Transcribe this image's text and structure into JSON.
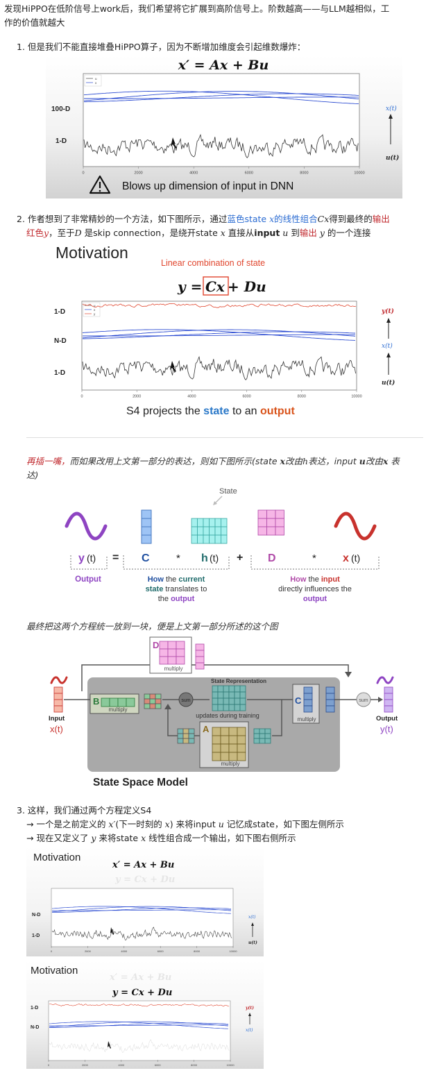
{
  "intro": {
    "line1": "发现HiPPO在低阶信号上work后，我们希望将它扩展到高阶信号上。阶数越高——与LLM越相似，工",
    "line2": "作的价值就越大"
  },
  "item1": {
    "num": "1.",
    "text": "但是我们不能直接堆叠HiPPO算子，因为不断增加维度会引起维数爆炸："
  },
  "fig1": {
    "equation": "x′ = Ax + Bu",
    "legend": [
      "u",
      "x"
    ],
    "left_labels": [
      "100-D",
      "1-D"
    ],
    "right_labels": [
      "x(t)",
      "u(t)"
    ],
    "x_ticks": [
      "0",
      "2000",
      "4000",
      "6000",
      "8000",
      "10000"
    ],
    "warning": "Blows up dimension of input in DNN"
  },
  "item2": {
    "num": "2.",
    "t1": "作者想到了非常精妙的一个方法，如下图所示，通过",
    "t2": "蓝色state ",
    "t3": "x",
    "t4": "的线性组合",
    "t5": "Cx",
    "t6": "得到最终的",
    "t7": "输出",
    "t8": "红色",
    "t9": "y",
    "t10": "，至于",
    "t11": "D",
    "t12": " 是skip connection，是绕开state ",
    "t13": "x",
    "t14": " 直接从",
    "t15": "input",
    "t16": " u",
    "t17": " 到",
    "t18": "输出",
    "t19": " y",
    "t20": " 的一个连接"
  },
  "fig2": {
    "title": "Motivation",
    "subtitle": "Linear combination of state",
    "equation_left": "y = ",
    "equation_box": "Cx",
    "equation_right": " + Du",
    "legend": [
      "u",
      "x",
      "y"
    ],
    "left_labels": [
      "1-D",
      "N-D",
      "1-D"
    ],
    "right_labels": [
      "y(t)",
      "x(t)",
      "u(t)"
    ],
    "x_ticks": [
      "0",
      "2000",
      "4000",
      "6000",
      "8000",
      "10000"
    ],
    "caption_a": "S4 projects the ",
    "caption_b": "state",
    "caption_c": " to an ",
    "caption_d": "output"
  },
  "note1": {
    "a": "再插一嘴，",
    "b": "而如果改用上文第一部分的表达，则如下图所示(state ",
    "c": "x",
    "d": "改由",
    "e": "h",
    "f": "表达，input ",
    "g": "u",
    "h": "改由",
    "i": "x",
    "j": " 表",
    "k": "达)"
  },
  "fig3": {
    "state_label": "State",
    "y_label": "y",
    "t_label": "(t)",
    "eq": "=",
    "c": "C",
    "star": "*",
    "h": "h",
    "plus": "+",
    "d": "D",
    "x": "x",
    "output": "Output",
    "how_a1": "How",
    "how_a2": " the ",
    "how_a3": "current",
    "how_a4": "state",
    "how_a5": " translates to",
    "how_a6": "the ",
    "how_a7": "output",
    "how_b1": "How",
    "how_b2": " the ",
    "how_b3": "input",
    "how_b4": "directly influences the",
    "how_b5": "output"
  },
  "note2": "最终把这两个方程统一放到一块，便是上文第一部分所述的这个图",
  "fig4": {
    "d": "D",
    "multiply": "multiply",
    "state_rep": "State Representation",
    "updates": "updates during training",
    "b": "B",
    "a": "A",
    "c": "C",
    "sum": "sum",
    "input": "Input",
    "input_x": "x(t)",
    "output": "Output",
    "output_y": "y(t)",
    "ssm": "State Space Model"
  },
  "item3": {
    "num": "3.",
    "text": "这样，我们通过两个方程定义S4",
    "arrow1a": "→  一个是之前定义的 ",
    "arrow1b": "x′",
    "arrow1c": "(下一时刻的 ",
    "arrow1d": "x",
    "arrow1e": ") 来将input ",
    "arrow1f": "u",
    "arrow1g": " 记忆成state，如下图左侧所示",
    "arrow2a": "→  现在又定义了 ",
    "arrow2b": "y",
    "arrow2c": " 来将state ",
    "arrow2d": "x",
    "arrow2e": " 线性组合成一个输出，如下图右侧所示"
  },
  "fig5": {
    "title": "Motivation",
    "eq1": "x′ = Ax + Bu",
    "eq2": "y = Cx + Du",
    "left_labels": [
      "N-D",
      "1-D"
    ],
    "right_labels": [
      "x(t)",
      "u(t)"
    ],
    "x_ticks": [
      "0",
      "2000",
      "4000",
      "6000",
      "8000",
      "10000"
    ]
  },
  "fig6": {
    "title": "Motivation",
    "eq1": "x′ = Ax + Bu",
    "eq2": "y = Cx + Du",
    "left_labels": [
      "1-D",
      "N-D"
    ],
    "right_labels": [
      "y(t)",
      "x(t)"
    ],
    "x_ticks": [
      "0",
      "2000",
      "4000",
      "6000",
      "8000",
      "10000"
    ]
  }
}
